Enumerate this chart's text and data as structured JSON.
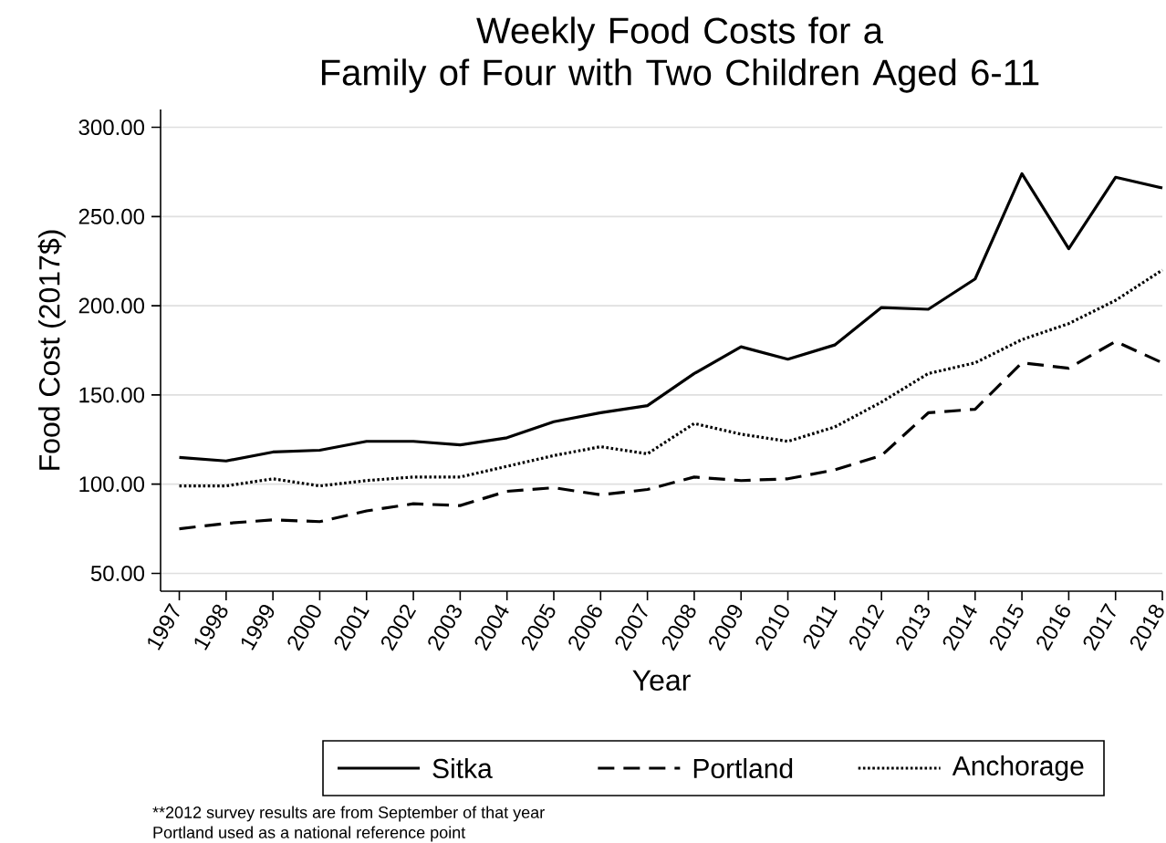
{
  "chart_data": {
    "type": "line",
    "title": "Weekly Food Costs for a\nFamily of Four with Two Children Aged 6-11",
    "xlabel": "Year",
    "ylabel": "Food Cost (2017$)",
    "x": [
      1997,
      1998,
      1999,
      2000,
      2001,
      2002,
      2003,
      2004,
      2005,
      2006,
      2007,
      2008,
      2009,
      2010,
      2011,
      2012,
      2013,
      2014,
      2015,
      2016,
      2017,
      2018
    ],
    "xlim": [
      1996.6,
      2018
    ],
    "xticks": [
      1997,
      1998,
      1999,
      2000,
      2001,
      2002,
      2003,
      2004,
      2005,
      2006,
      2007,
      2008,
      2009,
      2010,
      2011,
      2012,
      2013,
      2014,
      2015,
      2016,
      2017,
      2018
    ],
    "ylim": [
      40,
      310
    ],
    "yticks": [
      {
        "value": 50,
        "label": "50.00"
      },
      {
        "value": 100,
        "label": "100.00"
      },
      {
        "value": 150,
        "label": "150.00"
      },
      {
        "value": 200,
        "label": "200.00"
      },
      {
        "value": 250,
        "label": "250.00"
      },
      {
        "value": 300,
        "label": "300.00"
      }
    ],
    "grid": "y",
    "legend": "bottom",
    "marker": "none",
    "series": [
      {
        "name": "Sitka",
        "color": "#000000",
        "line_style": "solid",
        "values": [
          115,
          113,
          118,
          119,
          124,
          124,
          122,
          126,
          135,
          140,
          144,
          162,
          177,
          170,
          178,
          199,
          198,
          215,
          274,
          232,
          272,
          266
        ]
      },
      {
        "name": "Portland",
        "color": "#000000",
        "line_style": "dashed",
        "values": [
          75,
          78,
          80,
          79,
          85,
          89,
          88,
          96,
          98,
          94,
          97,
          104,
          102,
          103,
          108,
          116,
          140,
          142,
          168,
          165,
          180,
          168
        ]
      },
      {
        "name": "Anchorage",
        "color": "#000000",
        "line_style": "dotted",
        "values": [
          99,
          99,
          103,
          99,
          102,
          104,
          104,
          110,
          116,
          121,
          117,
          134,
          128,
          124,
          132,
          146,
          162,
          168,
          181,
          190,
          203,
          220
        ]
      }
    ],
    "annotations": [
      "**2012 survey results are from September of that year",
      "Portland used as a national reference point"
    ]
  }
}
